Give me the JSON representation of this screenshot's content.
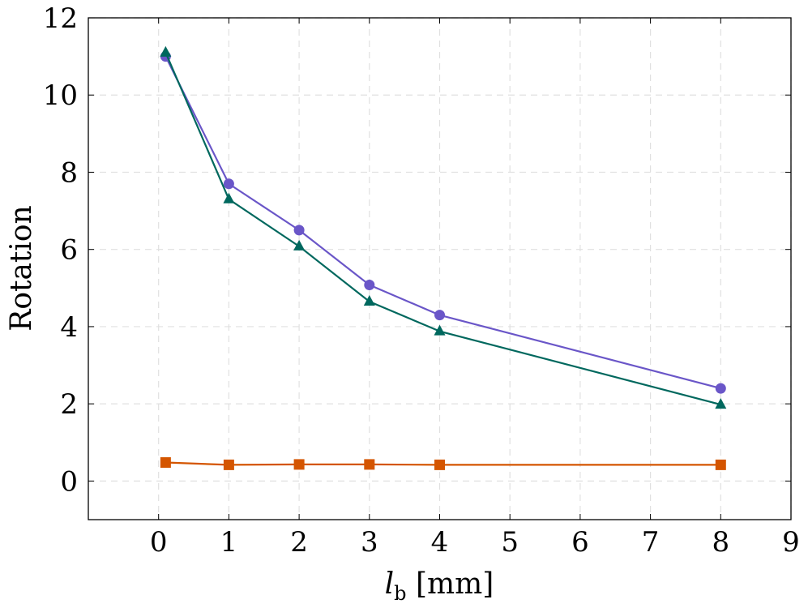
{
  "chart_data": {
    "type": "line",
    "title": "",
    "xlabel_italic": "l",
    "xlabel_sub": "b",
    "xlabel_rest": " [mm]",
    "ylabel": "Rotation",
    "xlim": [
      -1,
      9
    ],
    "ylim": [
      -1,
      12
    ],
    "xticks": [
      0,
      1,
      2,
      3,
      4,
      5,
      6,
      7,
      8,
      9
    ],
    "yticks": [
      0,
      2,
      4,
      6,
      8,
      10,
      12
    ],
    "grid": true,
    "legend": "none",
    "x": [
      0.1,
      1,
      2,
      3,
      4,
      8
    ],
    "series": [
      {
        "values": [
          11.0,
          7.7,
          6.5,
          5.08,
          4.3,
          2.4
        ],
        "color": "#6a56c8",
        "marker": "circle"
      },
      {
        "values": [
          11.1,
          7.3,
          6.08,
          4.65,
          3.88,
          1.98
        ],
        "color": "#00685e",
        "marker": "triangle"
      },
      {
        "values": [
          0.48,
          0.42,
          0.43,
          0.43,
          0.42,
          0.42
        ],
        "color": "#d45500",
        "marker": "square"
      }
    ]
  }
}
